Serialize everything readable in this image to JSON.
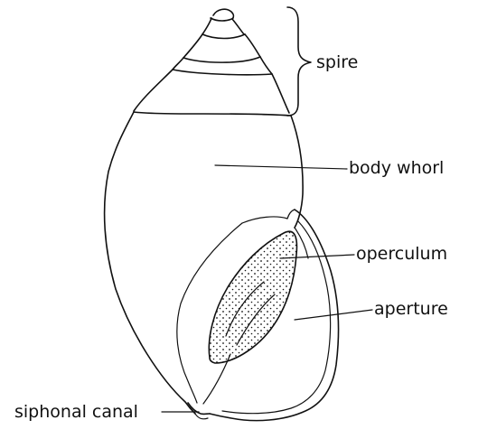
{
  "labels": {
    "spire": "spire",
    "body_whorl": "body whorl",
    "operculum": "operculum",
    "aperture": "aperture",
    "siphonal_canal": "siphonal canal"
  }
}
